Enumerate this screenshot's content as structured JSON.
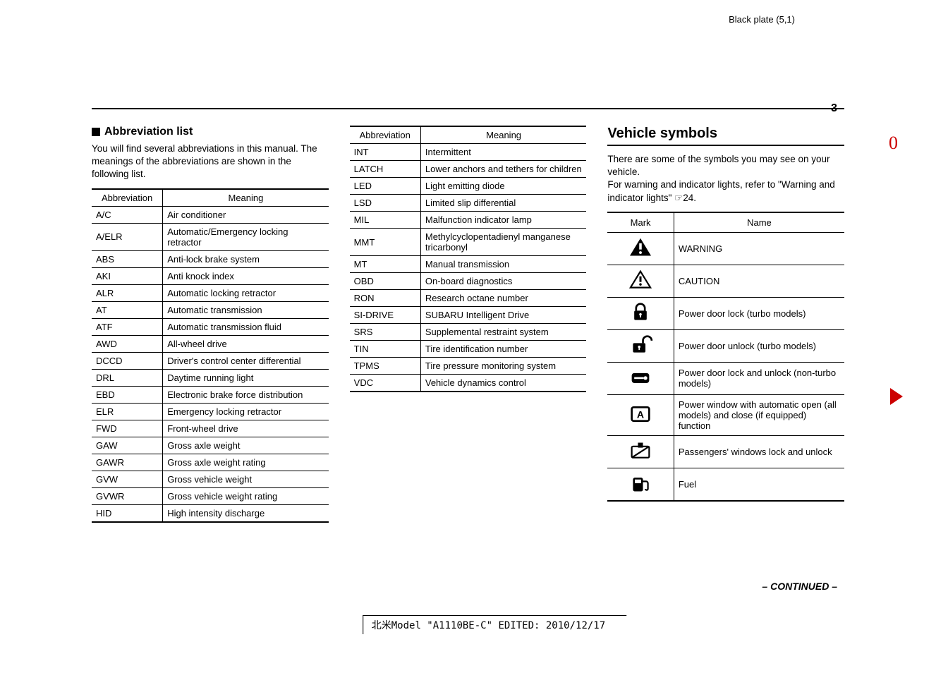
{
  "header": {
    "plate": "Black plate (5,1)",
    "page": "3",
    "red_glyph": "0"
  },
  "col1": {
    "heading": "Abbreviation list",
    "intro": "You will find several abbreviations in this manual. The meanings of the abbreviations are shown in the following list.",
    "th_abbr": "Abbreviation",
    "th_mean": "Meaning",
    "rows": [
      {
        "a": "A/C",
        "m": "Air conditioner"
      },
      {
        "a": "A/ELR",
        "m": "Automatic/Emergency locking retractor"
      },
      {
        "a": "ABS",
        "m": "Anti-lock brake system"
      },
      {
        "a": "AKI",
        "m": "Anti knock index"
      },
      {
        "a": "ALR",
        "m": "Automatic locking retractor"
      },
      {
        "a": "AT",
        "m": "Automatic transmission"
      },
      {
        "a": "ATF",
        "m": "Automatic transmission fluid"
      },
      {
        "a": "AWD",
        "m": "All-wheel drive"
      },
      {
        "a": "DCCD",
        "m": "Driver's control center differential"
      },
      {
        "a": "DRL",
        "m": "Daytime running light"
      },
      {
        "a": "EBD",
        "m": "Electronic brake force distribution"
      },
      {
        "a": "ELR",
        "m": "Emergency locking retractor"
      },
      {
        "a": "FWD",
        "m": "Front-wheel drive"
      },
      {
        "a": "GAW",
        "m": "Gross axle weight"
      },
      {
        "a": "GAWR",
        "m": "Gross axle weight rating"
      },
      {
        "a": "GVW",
        "m": "Gross vehicle weight"
      },
      {
        "a": "GVWR",
        "m": "Gross vehicle weight rating"
      },
      {
        "a": "HID",
        "m": "High intensity discharge"
      }
    ]
  },
  "col2": {
    "th_abbr": "Abbreviation",
    "th_mean": "Meaning",
    "rows": [
      {
        "a": "INT",
        "m": "Intermittent"
      },
      {
        "a": "LATCH",
        "m": "Lower anchors and tethers for children"
      },
      {
        "a": "LED",
        "m": "Light emitting diode"
      },
      {
        "a": "LSD",
        "m": "Limited slip differential"
      },
      {
        "a": "MIL",
        "m": "Malfunction indicator lamp"
      },
      {
        "a": "MMT",
        "m": "Methylcyclopentadienyl manganese tricarbonyl"
      },
      {
        "a": "MT",
        "m": "Manual transmission"
      },
      {
        "a": "OBD",
        "m": "On-board diagnostics"
      },
      {
        "a": "RON",
        "m": "Research octane number"
      },
      {
        "a": "SI-DRIVE",
        "m": "SUBARU Intelligent Drive"
      },
      {
        "a": "SRS",
        "m": "Supplemental restraint system"
      },
      {
        "a": "TIN",
        "m": "Tire identification number"
      },
      {
        "a": "TPMS",
        "m": "Tire pressure monitoring system"
      },
      {
        "a": "VDC",
        "m": "Vehicle dynamics control"
      }
    ]
  },
  "col3": {
    "heading": "Vehicle symbols",
    "intro": "There are some of the symbols you may see on your vehicle.\nFor warning and indicator lights, refer to \"Warning and indicator lights\" ☞24.",
    "th_mark": "Mark",
    "th_name": "Name",
    "rows": [
      {
        "icon": "warning-tri-excl",
        "n": "WARNING"
      },
      {
        "icon": "caution-tri-excl",
        "n": "CAUTION"
      },
      {
        "icon": "lock-closed",
        "n": "Power door lock (turbo models)"
      },
      {
        "icon": "lock-open",
        "n": "Power door unlock (turbo models)"
      },
      {
        "icon": "key-rect",
        "n": "Power door lock and unlock (non-turbo models)"
      },
      {
        "icon": "auto-a",
        "n": "Power window with automatic open (all models) and close (if equipped) function"
      },
      {
        "icon": "windows-lock",
        "n": "Passengers' windows lock and unlock"
      },
      {
        "icon": "fuel-pump",
        "n": "Fuel"
      }
    ]
  },
  "footer": {
    "continued": "– CONTINUED –",
    "model": "北米Model \"A1110BE-C\" EDITED: 2010/12/17"
  },
  "style": {
    "bg": "#ffffff",
    "text": "#000000",
    "accent": "#cc0000",
    "font_body": 13,
    "font_head_small": 16,
    "font_head_big": 20
  }
}
